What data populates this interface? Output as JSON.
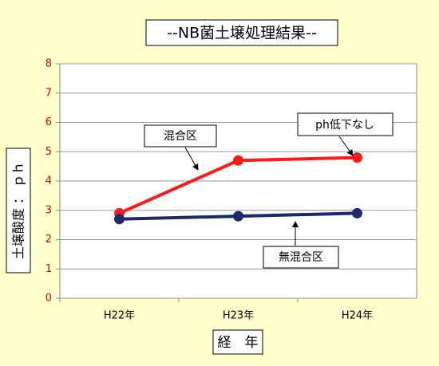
{
  "chart_data": {
    "type": "line",
    "title": "--NB菌土壌処理結果--",
    "x_label": "経　年",
    "y_label": "土壌酸度 ： ｐｈ",
    "categories": [
      "H22年",
      "H23年",
      "H24年"
    ],
    "series": [
      {
        "name": "混合区",
        "color": "#ff1a1a",
        "values": [
          2.9,
          4.7,
          4.8
        ]
      },
      {
        "name": "無混合区",
        "color": "#1a2a6c",
        "values": [
          2.7,
          2.8,
          2.9
        ]
      }
    ],
    "annotation": "ph低下なし",
    "ylim": [
      0,
      8
    ],
    "yticks": [
      0,
      1,
      2,
      3,
      4,
      5,
      6,
      7,
      8
    ],
    "grid": true,
    "ytick_color": "#e00000"
  }
}
